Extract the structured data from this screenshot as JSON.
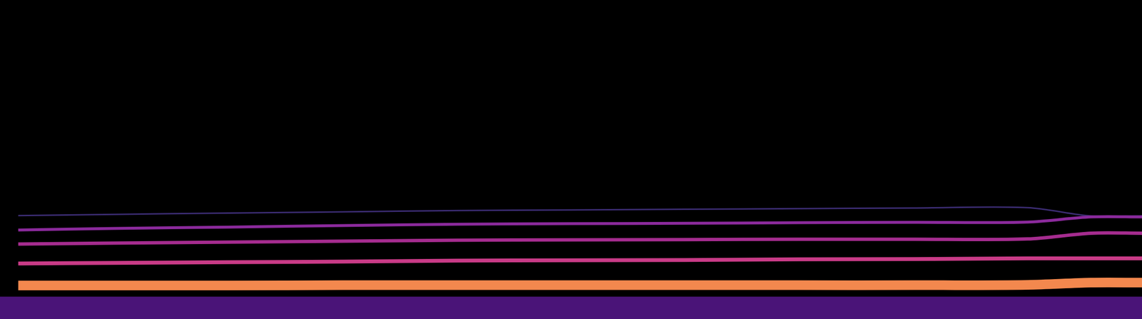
{
  "chart_data": {
    "type": "line",
    "x": [
      0,
      1.6,
      10,
      20,
      30,
      40,
      50,
      60,
      70,
      80,
      90,
      95.5,
      100
    ],
    "xlim": [
      0,
      100
    ],
    "ylim": [
      0,
      100
    ],
    "tick_labels": false,
    "grid": false,
    "series": [
      {
        "type": "area",
        "color": "#4a1478",
        "values": [
          7,
          7,
          7,
          7,
          7,
          7,
          7,
          7,
          7,
          7,
          7,
          7,
          7
        ]
      },
      {
        "color": "#f3884e",
        "values": [
          null,
          10.5,
          10.5,
          10.5,
          10.6,
          10.6,
          10.6,
          10.6,
          10.6,
          10.6,
          10.7,
          11.4,
          11.4
        ]
      },
      {
        "color": "#c93b87",
        "values": [
          null,
          17.4,
          17.6,
          17.8,
          18.0,
          18.3,
          18.4,
          18.5,
          18.7,
          18.8,
          19.0,
          19.0,
          19.0
        ]
      },
      {
        "color": "#a52c8f",
        "values": [
          null,
          23.5,
          23.8,
          24.1,
          24.4,
          24.7,
          24.8,
          24.9,
          25.0,
          25.0,
          25.1,
          26.9,
          26.9
        ]
      },
      {
        "color": "#8b2a9c",
        "values": [
          null,
          27.9,
          28.4,
          28.8,
          29.3,
          29.7,
          29.9,
          30.0,
          30.2,
          30.3,
          30.4,
          32.0,
          32.0
        ]
      },
      {
        "color": "#3b2c72",
        "values": [
          null,
          32.4,
          32.8,
          33.2,
          33.6,
          34.0,
          34.2,
          34.4,
          34.6,
          34.8,
          34.9,
          32.3,
          32.3
        ]
      }
    ]
  }
}
